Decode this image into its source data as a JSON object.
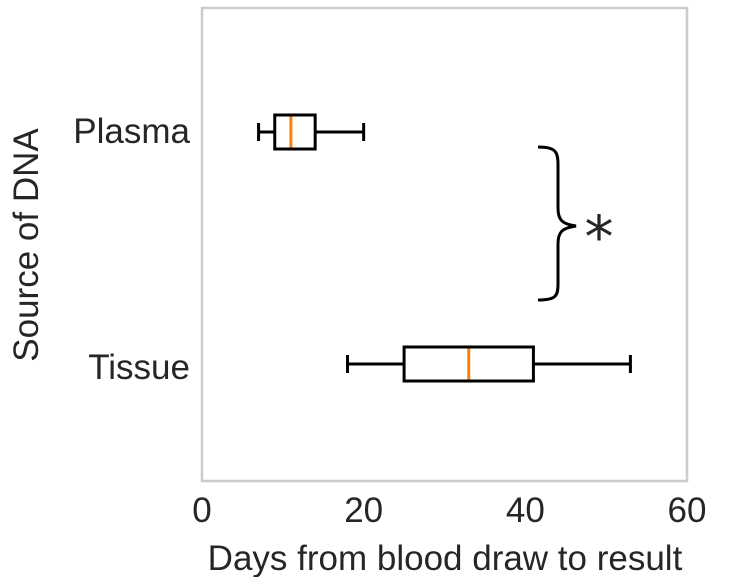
{
  "chart_data": {
    "type": "boxplot",
    "orientation": "horizontal",
    "xlabel": "Days from blood draw to result",
    "ylabel": "Source of DNA",
    "xlim": [
      0,
      60
    ],
    "xticks": [
      0,
      20,
      40,
      60
    ],
    "grid": false,
    "categories": [
      "Plasma",
      "Tissue"
    ],
    "boxes": [
      {
        "category": "Plasma",
        "whisker_low": 7,
        "q1": 9,
        "median": 11,
        "q3": 14,
        "whisker_high": 20
      },
      {
        "category": "Tissue",
        "whisker_low": 18,
        "q1": 25,
        "median": 33,
        "q3": 41,
        "whisker_high": 53
      }
    ],
    "annotation": {
      "type": "significance-bracket",
      "symbol": "*",
      "between": [
        "Plasma",
        "Tissue"
      ]
    }
  },
  "colors": {
    "box": "#000000",
    "median": "#ff7f0e",
    "frame": "#cccccc",
    "text": "#262626"
  }
}
